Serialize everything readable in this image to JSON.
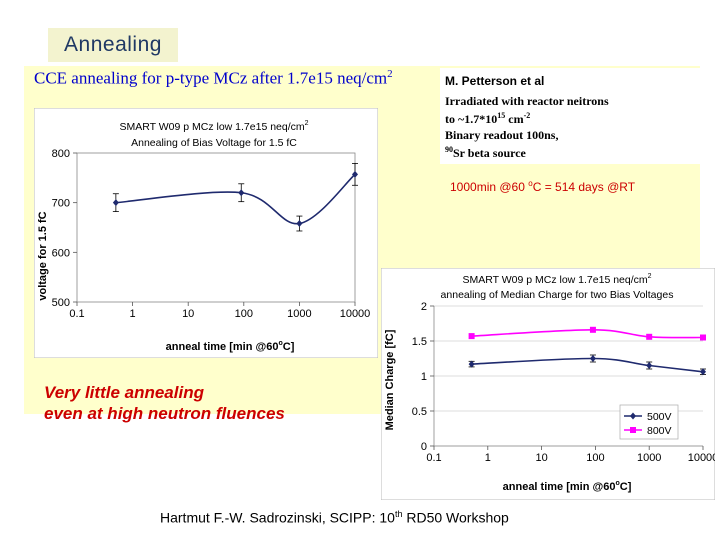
{
  "slide": {
    "title": "Annealing",
    "subtitle": "CCE annealing for  p-type MCz after 1.7e15 neq/cm",
    "subtitle_sup": "2",
    "info": {
      "line1": "M. Petterson et al",
      "line2": "Irradiated with reactor neitrons",
      "line3_pre": "to ~1.7*10",
      "line3_exp": "15",
      "line3_post": " cm",
      "line3_post_exp": "-2",
      "line4": "Binary readout 100ns,",
      "line5_sup": "90",
      "line5": "Sr beta source"
    },
    "conversion_pre": "1000min @60 ",
    "conversion_deg": "o",
    "conversion_post": "C = 514 days @RT",
    "note_line1": "Very little annealing",
    "note_line2": "even at high neutron fluences",
    "footer_pre": "Hartmut F.-W. Sadrozinski, SCIPP: 10",
    "footer_sup": "th",
    "footer_post": " RD50 Workshop"
  },
  "chart_data": [
    {
      "type": "line",
      "title_line1": "SMART W09 p MCz low 1.7e15 neq/cm",
      "title_line1_sup": "2",
      "title_line2": "Annealing of Bias Voltage for 1.5 fC",
      "xlabel_pre": "anneal time [min @60",
      "xlabel_deg": "o",
      "xlabel_post": "C]",
      "ylabel": "voltage for 1.5 fC",
      "xscale": "log",
      "xlim": [
        0.1,
        10000
      ],
      "ylim": [
        500,
        800
      ],
      "x_ticks": [
        "0.1",
        "1",
        "10",
        "100",
        "1000",
        "10000"
      ],
      "y_ticks": [
        "500",
        "600",
        "700",
        "800"
      ],
      "series": [
        {
          "name": "bias voltage",
          "color": "#1f2a6e",
          "x": [
            0.5,
            90,
            1000,
            10000
          ],
          "y": [
            700,
            720,
            658,
            757
          ],
          "err": [
            18,
            18,
            15,
            22
          ]
        }
      ]
    },
    {
      "type": "line",
      "title_line1": "SMART W09 p MCz low 1.7e15 neq/cm",
      "title_line1_sup": "2",
      "title_line2": "annealing of Median Charge for two Bias Voltages",
      "xlabel_pre": "anneal time [min @60",
      "xlabel_deg": "o",
      "xlabel_post": "C]",
      "ylabel": "Median Charge [fC]",
      "xscale": "log",
      "xlim": [
        0.1,
        10000
      ],
      "ylim": [
        0,
        2
      ],
      "x_ticks": [
        "0.1",
        "1",
        "10",
        "100",
        "1000",
        "10000"
      ],
      "y_ticks": [
        "0",
        "0.5",
        "1",
        "1.5",
        "2"
      ],
      "legend_position": "bottom-right",
      "series": [
        {
          "name": "500V",
          "color": "#1f2a6e",
          "marker": "diamond",
          "x": [
            0.5,
            90,
            1000,
            10000
          ],
          "y": [
            1.17,
            1.25,
            1.15,
            1.06
          ],
          "err": [
            0.04,
            0.05,
            0.05,
            0.04
          ]
        },
        {
          "name": "800V",
          "color": "#ff00ff",
          "marker": "square",
          "x": [
            0.5,
            90,
            1000,
            10000
          ],
          "y": [
            1.57,
            1.66,
            1.56,
            1.55
          ],
          "err": [
            0,
            0,
            0,
            0
          ]
        }
      ]
    }
  ]
}
